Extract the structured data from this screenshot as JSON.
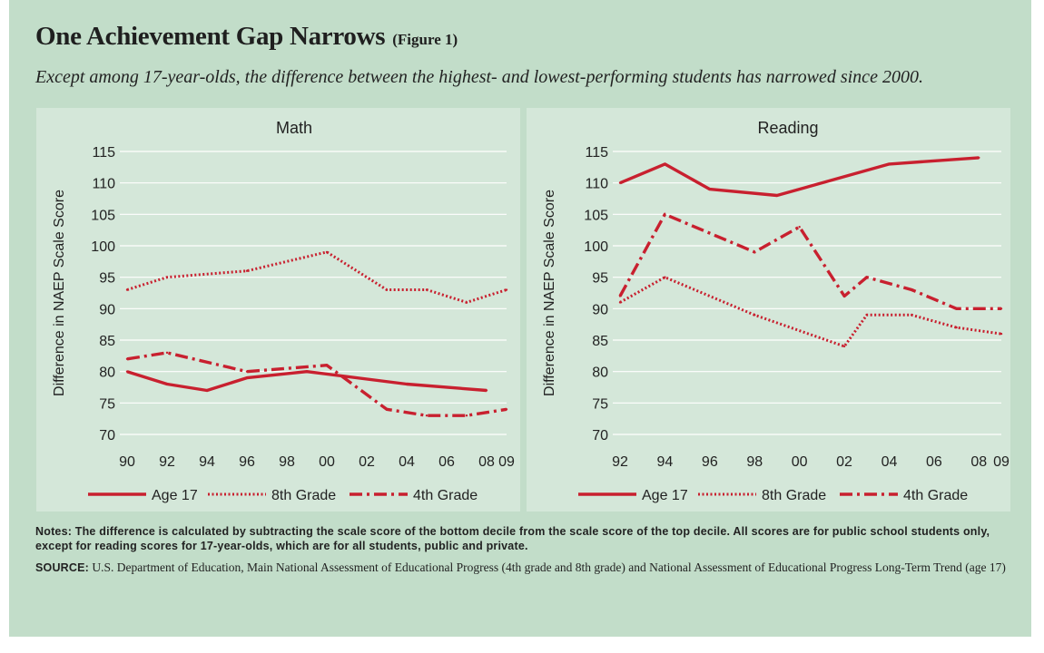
{
  "header": {
    "title": "One Achievement Gap Narrows",
    "figure_label": "(Figure 1)",
    "subtitle": "Except among 17-year-olds, the difference between the highest- and lowest-performing students has narrowed since 2000."
  },
  "colors": {
    "series": "#c8202f",
    "grid": "#ffffff",
    "background": "#c2ddc9",
    "panel": "#d4e7d9"
  },
  "footer": {
    "notes": "Notes: The difference is calculated by subtracting the scale score of the bottom decile from the scale score of the top decile. All scores are for public school students only, except for reading scores for 17-year-olds, which are for all students, public and private.",
    "source_label": "SOURCE:",
    "source_text": "U.S. Department of Education, Main National Assessment of Educational Progress (4th grade and 8th grade) and National Assessment of Educational Progress Long-Term Trend (age 17)"
  },
  "chart_data": [
    {
      "type": "line",
      "title": "Math",
      "ylabel": "Difference in NAEP Scale Score",
      "xlabel": "",
      "ylim": [
        70,
        115
      ],
      "yticks": [
        70,
        75,
        80,
        85,
        90,
        95,
        100,
        105,
        110,
        115
      ],
      "xlim": [
        1990,
        2009
      ],
      "xticks": [
        {
          "year": 1990,
          "label": "90"
        },
        {
          "year": 1992,
          "label": "92"
        },
        {
          "year": 1994,
          "label": "94"
        },
        {
          "year": 1996,
          "label": "96"
        },
        {
          "year": 1998,
          "label": "98"
        },
        {
          "year": 2000,
          "label": "00"
        },
        {
          "year": 2002,
          "label": "02"
        },
        {
          "year": 2004,
          "label": "04"
        },
        {
          "year": 2006,
          "label": "06"
        },
        {
          "year": 2008,
          "label": "08"
        },
        {
          "year": 2009,
          "label": "09"
        }
      ],
      "grid": "horizontal",
      "legend_position": "bottom",
      "series": [
        {
          "name": "Age 17",
          "style": "solid",
          "points": [
            [
              1990,
              80
            ],
            [
              1992,
              78
            ],
            [
              1994,
              77
            ],
            [
              1996,
              79
            ],
            [
              1999,
              80
            ],
            [
              2004,
              78
            ],
            [
              2008,
              77
            ]
          ]
        },
        {
          "name": "8th Grade",
          "style": "dotted",
          "points": [
            [
              1990,
              93
            ],
            [
              1992,
              95
            ],
            [
              1996,
              96
            ],
            [
              2000,
              99
            ],
            [
              2003,
              93
            ],
            [
              2005,
              93
            ],
            [
              2007,
              91
            ],
            [
              2009,
              93
            ]
          ]
        },
        {
          "name": "4th Grade",
          "style": "dashdot",
          "points": [
            [
              1990,
              82
            ],
            [
              1992,
              83
            ],
            [
              1996,
              80
            ],
            [
              2000,
              81
            ],
            [
              2003,
              74
            ],
            [
              2005,
              73
            ],
            [
              2007,
              73
            ],
            [
              2009,
              74
            ]
          ]
        }
      ]
    },
    {
      "type": "line",
      "title": "Reading",
      "ylabel": "Difference in NAEP Scale Score",
      "xlabel": "",
      "ylim": [
        70,
        115
      ],
      "yticks": [
        70,
        75,
        80,
        85,
        90,
        95,
        100,
        105,
        110,
        115
      ],
      "xlim": [
        1992,
        2009
      ],
      "xticks": [
        {
          "year": 1992,
          "label": "92"
        },
        {
          "year": 1994,
          "label": "94"
        },
        {
          "year": 1996,
          "label": "96"
        },
        {
          "year": 1998,
          "label": "98"
        },
        {
          "year": 2000,
          "label": "00"
        },
        {
          "year": 2002,
          "label": "02"
        },
        {
          "year": 2004,
          "label": "04"
        },
        {
          "year": 2006,
          "label": "06"
        },
        {
          "year": 2008,
          "label": "08"
        },
        {
          "year": 2009,
          "label": "09"
        }
      ],
      "grid": "horizontal",
      "legend_position": "bottom",
      "series": [
        {
          "name": "Age 17",
          "style": "solid",
          "points": [
            [
              1992,
              110
            ],
            [
              1994,
              113
            ],
            [
              1996,
              109
            ],
            [
              1999,
              108
            ],
            [
              2004,
              113
            ],
            [
              2008,
              114
            ]
          ]
        },
        {
          "name": "8th Grade",
          "style": "dotted",
          "points": [
            [
              1992,
              91
            ],
            [
              1994,
              95
            ],
            [
              1998,
              89
            ],
            [
              2002,
              84
            ],
            [
              2003,
              89
            ],
            [
              2005,
              89
            ],
            [
              2007,
              87
            ],
            [
              2009,
              86
            ]
          ]
        },
        {
          "name": "4th Grade",
          "style": "dashdot",
          "points": [
            [
              1992,
              92
            ],
            [
              1994,
              105
            ],
            [
              1998,
              99
            ],
            [
              2000,
              103
            ],
            [
              2002,
              92
            ],
            [
              2003,
              95
            ],
            [
              2005,
              93
            ],
            [
              2007,
              90
            ],
            [
              2009,
              90
            ]
          ]
        }
      ]
    }
  ]
}
